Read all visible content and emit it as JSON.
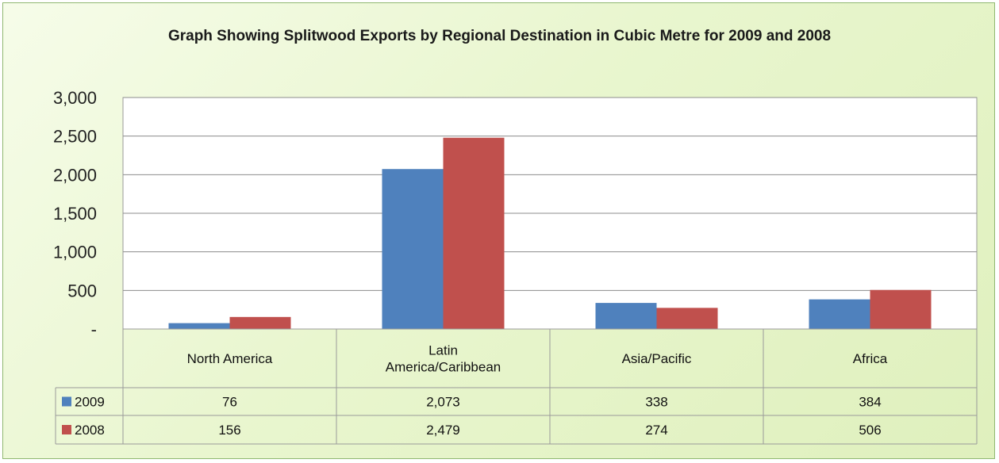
{
  "chart_data": {
    "type": "bar",
    "title": "Graph Showing Splitwood Exports by Regional Destination in Cubic Metre for 2009 and 2008",
    "categories": [
      "North America",
      "Latin America/Caribbean",
      "Asia/Pacific",
      "Africa"
    ],
    "category_lines": [
      [
        "North America"
      ],
      [
        "Latin",
        "America/Caribbean"
      ],
      [
        "Asia/Pacific"
      ],
      [
        "Africa"
      ]
    ],
    "series": [
      {
        "name": "2009",
        "color": "#4f81bd",
        "values": [
          76,
          2073,
          338,
          384
        ],
        "labels": [
          "76",
          "2,073",
          "338",
          "384"
        ]
      },
      {
        "name": "2008",
        "color": "#c0504d",
        "values": [
          156,
          2479,
          274,
          506
        ],
        "labels": [
          "156",
          "2,479",
          "274",
          "506"
        ]
      }
    ],
    "ylim": [
      0,
      3000
    ],
    "yticks": [
      0,
      500,
      1000,
      1500,
      2000,
      2500,
      3000
    ],
    "ytick_labels": [
      "-",
      "500",
      "1,000",
      "1,500",
      "2,000",
      "2,500",
      "3,000"
    ],
    "grid": true,
    "legend": "data-table-left",
    "xlabel": "",
    "ylabel": ""
  }
}
